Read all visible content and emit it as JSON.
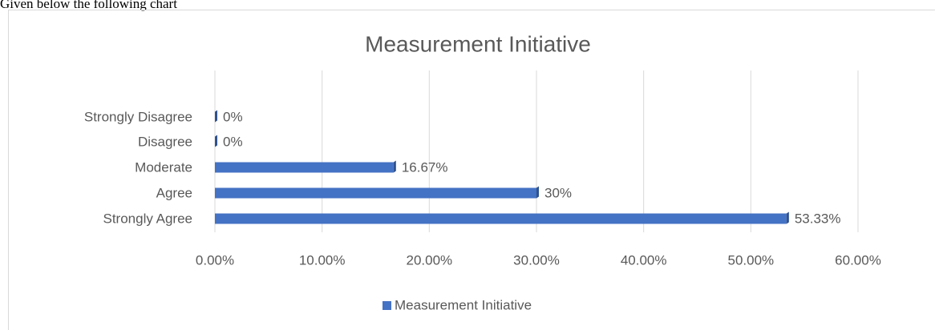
{
  "intro": "Given below the following chart",
  "chart_data": {
    "type": "bar",
    "orientation": "horizontal",
    "title": "Measurement Initiative",
    "categories": [
      "Strongly Disagree",
      "Disagree",
      "Moderate",
      "Agree",
      "Strongly Agree"
    ],
    "series": [
      {
        "name": "Measurement Initiative",
        "color": "#4472c4",
        "values": [
          0,
          0,
          16.67,
          30,
          53.33
        ],
        "value_labels": [
          "0%",
          "0%",
          "16.67%",
          "30%",
          "53.33%"
        ]
      }
    ],
    "xlim": [
      0,
      60
    ],
    "xticks": [
      {
        "value": 0,
        "label": "0.00%"
      },
      {
        "value": 10,
        "label": "10.00%"
      },
      {
        "value": 20,
        "label": "20.00%"
      },
      {
        "value": 30,
        "label": "30.00%"
      },
      {
        "value": 40,
        "label": "40.00%"
      },
      {
        "value": 50,
        "label": "50.00%"
      },
      {
        "value": 60,
        "label": "60.00%"
      }
    ],
    "grid": true,
    "legend": "bottom"
  }
}
